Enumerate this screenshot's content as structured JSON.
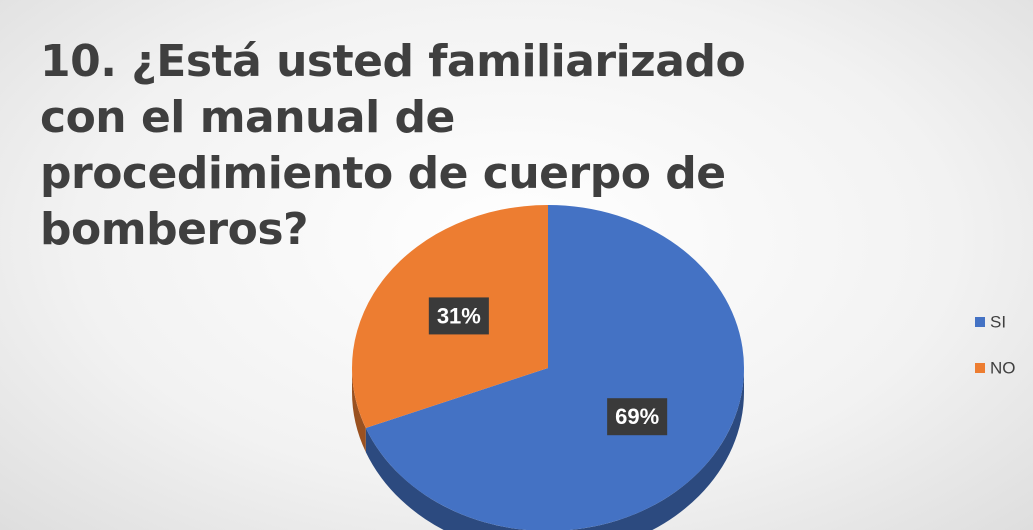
{
  "chart_data": {
    "type": "pie",
    "title": "10. ¿Está usted familiarizado con el manual de procedimiento de cuerpo de bomberos?",
    "categories": [
      "SI",
      "NO"
    ],
    "values": [
      69,
      31
    ],
    "value_labels": [
      "69%",
      "31%"
    ],
    "colors": [
      "#4472c4",
      "#ed7d31"
    ],
    "legend": "right"
  }
}
